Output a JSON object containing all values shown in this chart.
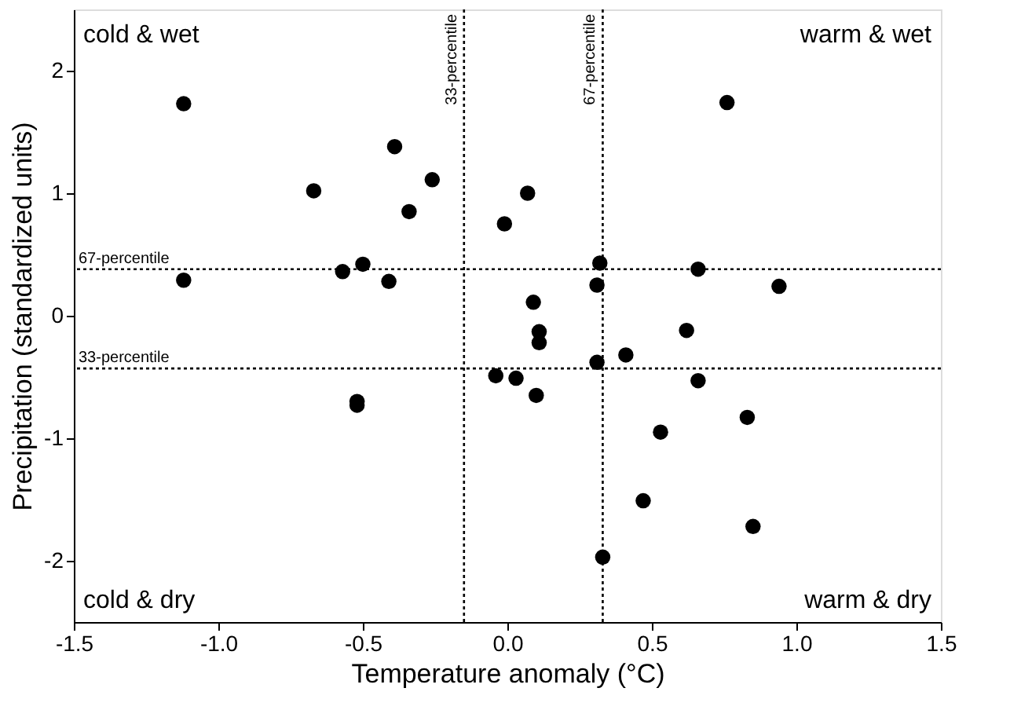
{
  "chart_data": {
    "type": "scatter",
    "xlabel": "Temperature anomaly (°C)",
    "ylabel": "Precipitation (standardized units)",
    "xlim": [
      -1.5,
      1.5
    ],
    "ylim": [
      -2.5,
      2.5
    ],
    "xticks": [
      -1.5,
      {
        "value": -1,
        "label": "-1.0"
      },
      -0.5,
      {
        "value": 0,
        "label": "0.0"
      },
      0.5,
      {
        "value": 1,
        "label": "1.0"
      },
      1.5
    ],
    "yticks": [
      -2,
      -1,
      0,
      1,
      2
    ],
    "grid": false,
    "marker": "circle",
    "series": [
      {
        "color": "#000000",
        "x": [
          -1.12,
          -0.39,
          -0.67,
          -0.26,
          -0.34,
          0.07,
          -0.01,
          -1.12,
          -0.57,
          -0.5,
          -0.41,
          -0.52,
          -0.52,
          -0.04,
          0.03,
          0.76,
          0.32,
          0.66,
          0.31,
          0.94,
          0.09,
          0.11,
          0.11,
          0.62,
          0.41,
          0.31,
          0.1,
          0.66,
          0.83,
          0.53,
          0.47,
          0.85,
          0.33
        ],
        "values": [
          1.73,
          1.38,
          1.02,
          1.11,
          0.85,
          1.0,
          0.75,
          0.29,
          0.36,
          0.42,
          0.28,
          -0.7,
          -0.73,
          -0.49,
          -0.51,
          1.74,
          0.43,
          0.38,
          0.25,
          0.24,
          0.11,
          -0.13,
          -0.22,
          -0.12,
          -0.32,
          -0.38,
          -0.65,
          -0.53,
          -0.83,
          -0.95,
          -1.51,
          -1.72,
          -1.97
        ]
      }
    ],
    "ref_lines": [
      {
        "axis": "x",
        "value": -0.15,
        "label": "33-percentile",
        "line_style": "dotted",
        "color": "#000000"
      },
      {
        "axis": "x",
        "value": 0.33,
        "label": "67-percentile",
        "line_style": "dotted",
        "color": "#000000"
      },
      {
        "axis": "y",
        "value": 0.38,
        "label": "67-percentile",
        "line_style": "dotted",
        "color": "#000000"
      },
      {
        "axis": "y",
        "value": -0.43,
        "label": "33-percentile",
        "line_style": "dotted",
        "color": "#000000"
      }
    ],
    "annotations": [
      "cold & wet",
      "warm & wet",
      "cold & dry",
      "warm & dry"
    ]
  }
}
